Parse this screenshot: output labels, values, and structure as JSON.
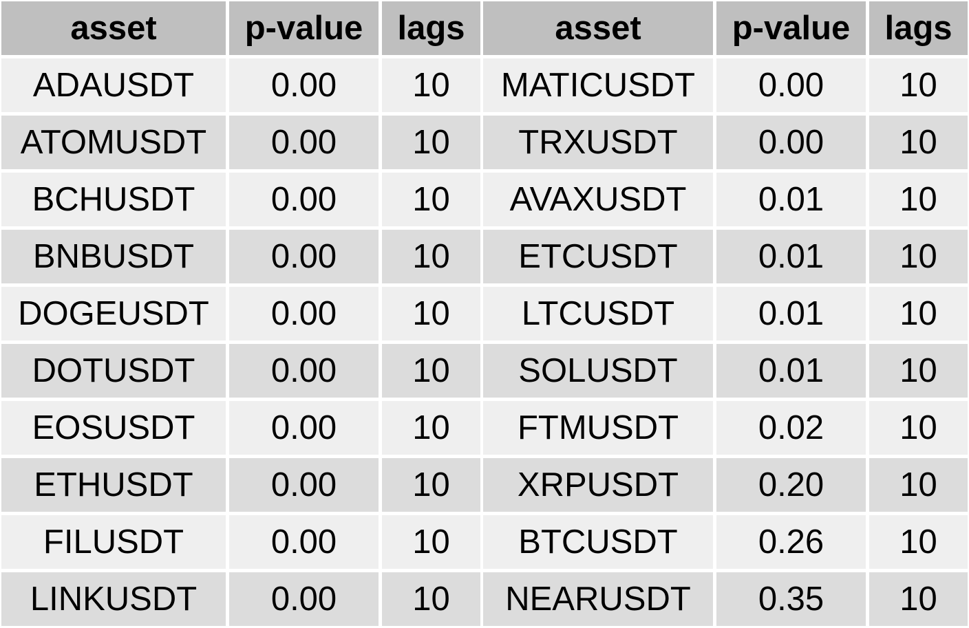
{
  "table": {
    "headers": [
      "asset",
      "p-value",
      "lags",
      "asset",
      "p-value",
      "lags"
    ],
    "rows": [
      [
        "ADAUSDT",
        "0.00",
        "10",
        "MATICUSDT",
        "0.00",
        "10"
      ],
      [
        "ATOMUSDT",
        "0.00",
        "10",
        "TRXUSDT",
        "0.00",
        "10"
      ],
      [
        "BCHUSDT",
        "0.00",
        "10",
        "AVAXUSDT",
        "0.01",
        "10"
      ],
      [
        "BNBUSDT",
        "0.00",
        "10",
        "ETCUSDT",
        "0.01",
        "10"
      ],
      [
        "DOGEUSDT",
        "0.00",
        "10",
        "LTCUSDT",
        "0.01",
        "10"
      ],
      [
        "DOTUSDT",
        "0.00",
        "10",
        "SOLUSDT",
        "0.01",
        "10"
      ],
      [
        "EOSUSDT",
        "0.00",
        "10",
        "FTMUSDT",
        "0.02",
        "10"
      ],
      [
        "ETHUSDT",
        "0.00",
        "10",
        "XRPUSDT",
        "0.20",
        "10"
      ],
      [
        "FILUSDT",
        "0.00",
        "10",
        "BTCUSDT",
        "0.26",
        "10"
      ],
      [
        "LINKUSDT",
        "0.00",
        "10",
        "NEARUSDT",
        "0.35",
        "10"
      ]
    ]
  },
  "colors": {
    "header_bg": "#bfbfbf",
    "row_light": "#efefef",
    "row_dark": "#dcdcdc",
    "gridline": "#ffffff",
    "text": "#000000"
  }
}
